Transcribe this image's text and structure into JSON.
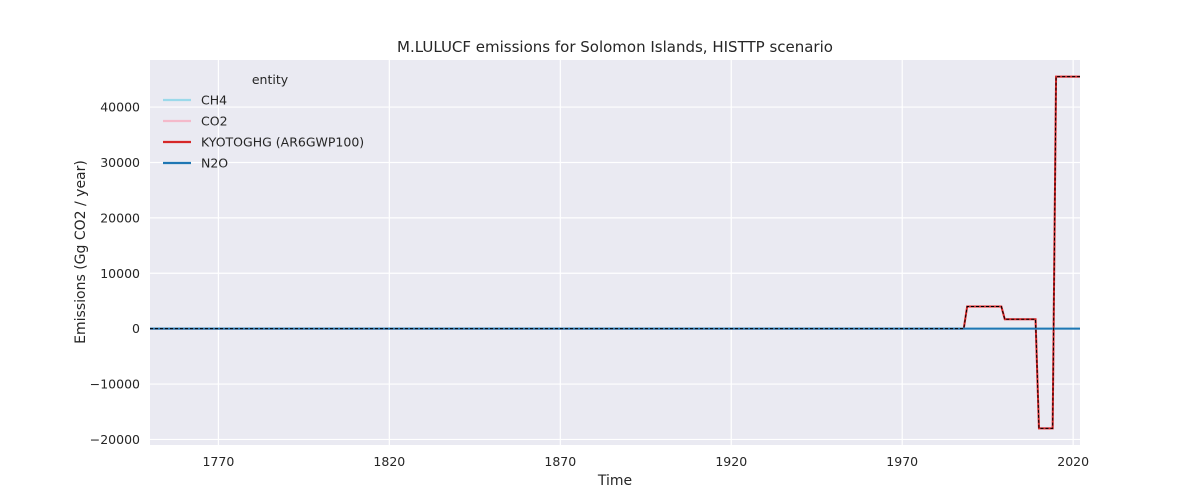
{
  "chart_data": {
    "type": "line",
    "title": "M.LULUCF emissions for Solomon Islands, HISTTP scenario",
    "xlabel": "Time",
    "ylabel": "Emissions (Gg CO2 / year)",
    "xlim": [
      1750,
      2022
    ],
    "ylim": [
      -21000,
      48500
    ],
    "xticks": [
      1770,
      1820,
      1870,
      1920,
      1970,
      2020
    ],
    "yticks": [
      -20000,
      -10000,
      0,
      10000,
      20000,
      30000,
      40000
    ],
    "ytick_labels": [
      "−20000",
      "−10000",
      "0",
      "10000",
      "20000",
      "30000",
      "40000"
    ],
    "grid": true,
    "legend": {
      "title": "entity",
      "position": "top-left",
      "entries": [
        "CH4",
        "CO2",
        "KYOTOGHG (AR6GWP100)",
        "N2O"
      ]
    },
    "series": [
      {
        "name": "CH4",
        "color": "#9bd9ea",
        "x": [
          1750,
          2022
        ],
        "y": [
          0,
          0
        ]
      },
      {
        "name": "CO2",
        "color": "#f4b9ca",
        "x": [
          1750,
          1988,
          1989,
          1999,
          2000,
          2009,
          2010,
          2014,
          2015,
          2022
        ],
        "y": [
          0,
          0,
          4000,
          4000,
          1700,
          1700,
          -18000,
          -18000,
          45500,
          45500
        ]
      },
      {
        "name": "KYOTOGHG (AR6GWP100)",
        "color": "#d62728",
        "x": [
          1750,
          1988,
          1989,
          1999,
          2000,
          2009,
          2010,
          2014,
          2015,
          2022
        ],
        "y": [
          0,
          0,
          4000,
          4000,
          1700,
          1700,
          -18000,
          -18000,
          45500,
          45500
        ]
      },
      {
        "name": "N2O",
        "color": "#1f77b4",
        "x": [
          1750,
          2022
        ],
        "y": [
          0,
          0
        ]
      }
    ]
  }
}
